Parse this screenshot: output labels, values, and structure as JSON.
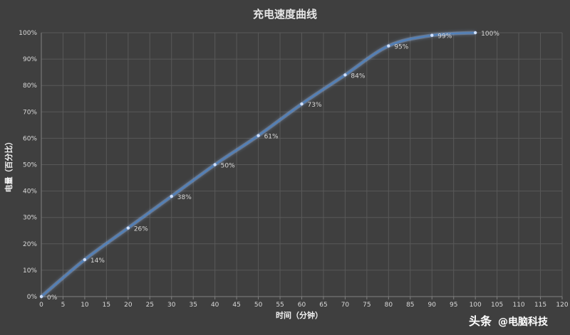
{
  "chart_data": {
    "type": "line",
    "title": "充电速度曲线",
    "xlabel": "时间（分钟）",
    "ylabel": "电量（百分比）",
    "x": [
      0,
      10,
      20,
      30,
      40,
      50,
      60,
      70,
      80,
      90,
      100
    ],
    "series": [
      {
        "values": [
          0,
          14,
          26,
          38,
          50,
          61,
          73,
          84,
          95,
          99,
          100
        ],
        "labels": [
          "0%",
          "14%",
          "26%",
          "38%",
          "50%",
          "61%",
          "73%",
          "84%",
          "95%",
          "99%",
          "100%"
        ],
        "color": "#4f81bd"
      }
    ],
    "xlim": [
      0,
      120
    ],
    "ylim": [
      0,
      100
    ],
    "x_ticks": [
      "0",
      "5",
      "10",
      "15",
      "20",
      "25",
      "30",
      "35",
      "40",
      "45",
      "50",
      "55",
      "60",
      "65",
      "70",
      "75",
      "80",
      "85",
      "90",
      "95",
      "100",
      "105",
      "110",
      "115",
      "120"
    ],
    "y_ticks": [
      "0%",
      "10%",
      "20%",
      "30%",
      "40%",
      "50%",
      "60%",
      "70%",
      "80%",
      "90%",
      "100%"
    ],
    "grid": true,
    "smooth": true
  },
  "watermark": {
    "source": "头条",
    "handle": "@电脑科技"
  },
  "colors": {
    "background": "#3f3f3f",
    "grid": "#595959",
    "line": "#4f81bd",
    "line_glow": "#8fb4e8"
  }
}
